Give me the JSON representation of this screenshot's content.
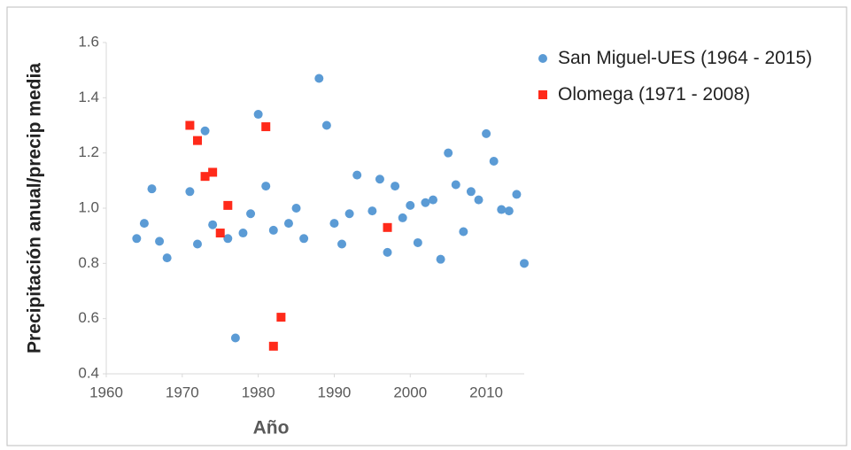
{
  "chart_data": {
    "type": "scatter",
    "xlabel": "Año",
    "ylabel": "Precipitación anual/precip media",
    "xlim": [
      1960,
      2015
    ],
    "xticks": [
      1960,
      1970,
      1980,
      1990,
      2000,
      2010
    ],
    "ylim": [
      0.4,
      1.6
    ],
    "yticks": [
      0.4,
      0.6,
      0.8,
      {
        "value": 1,
        "label": "1.0"
      },
      1.2,
      1.4,
      1.6
    ],
    "grid": false,
    "legend": "right",
    "series": [
      {
        "name": "San Miguel-UES (1964 - 2015)",
        "color": "#5b9bd5",
        "marker": "circle",
        "x": [
          1964,
          1965,
          1966,
          1967,
          1968,
          1971,
          1972,
          1973,
          1974,
          1976,
          1977,
          1978,
          1979,
          1980,
          1981,
          1982,
          1984,
          1985,
          1986,
          1988,
          1989,
          1990,
          1991,
          1992,
          1993,
          1995,
          1996,
          1997,
          1998,
          1999,
          2000,
          2001,
          2002,
          2003,
          2004,
          2005,
          2006,
          2007,
          2008,
          2009,
          2010,
          2011,
          2012,
          2013,
          2014,
          2015
        ],
        "values": [
          0.89,
          0.945,
          1.07,
          0.88,
          0.82,
          1.06,
          0.87,
          1.28,
          0.94,
          0.89,
          0.53,
          0.91,
          0.98,
          1.34,
          1.08,
          0.92,
          0.945,
          1.0,
          0.89,
          1.47,
          1.3,
          0.945,
          0.87,
          0.98,
          1.12,
          0.99,
          1.105,
          0.84,
          1.08,
          0.965,
          1.01,
          0.875,
          1.02,
          1.03,
          0.815,
          1.2,
          1.085,
          0.915,
          1.06,
          1.03,
          1.27,
          1.17,
          0.995,
          0.99,
          1.05,
          0.8
        ]
      },
      {
        "name": "Olomega (1971 - 2008)",
        "color": "#ff2a1a",
        "marker": "square",
        "x": [
          1971,
          1972,
          1973,
          1974,
          1975,
          1976,
          1981,
          1982,
          1983,
          1997
        ],
        "values": [
          1.3,
          1.245,
          1.115,
          1.13,
          0.91,
          1.01,
          1.295,
          0.5,
          0.605,
          0.93
        ]
      }
    ]
  }
}
